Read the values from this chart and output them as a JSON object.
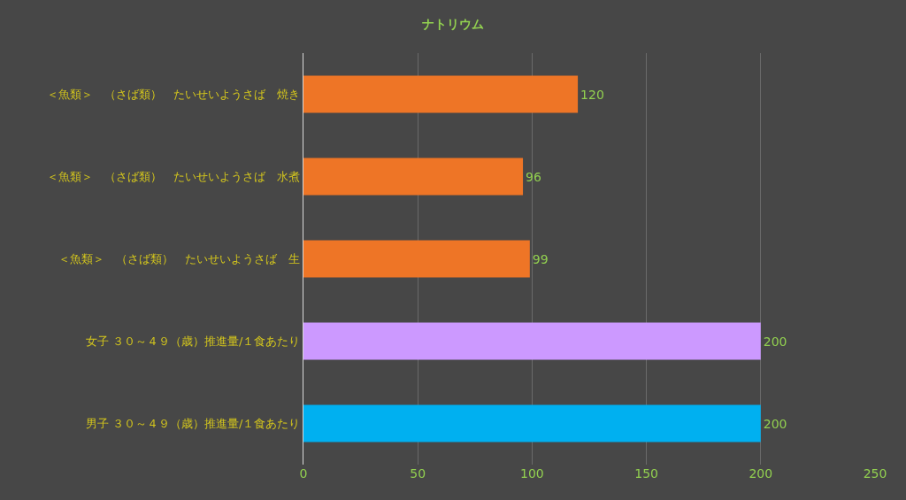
{
  "chart_data": {
    "type": "bar",
    "orientation": "horizontal",
    "title": "ナトリウム",
    "categories": [
      "＜魚類＞　（さば類）　たいせいようさば　焼き",
      "＜魚類＞　（さば類）　たいせいようさば　水煮",
      "＜魚類＞　（さば類）　たいせいようさば　生",
      "女子 ３０～４９（歳）推進量/１食あたり",
      "男子 ３０～４９（歳）推進量/１食あたり"
    ],
    "values": [
      120,
      96,
      99,
      200,
      200
    ],
    "colors": [
      "#ee7526",
      "#ee7526",
      "#ee7526",
      "#cc99ff",
      "#00b0f0"
    ],
    "xlim": [
      0,
      250
    ],
    "xticks": [
      0,
      50,
      100,
      150,
      200,
      250
    ],
    "grid": "x",
    "data_labels": true
  }
}
